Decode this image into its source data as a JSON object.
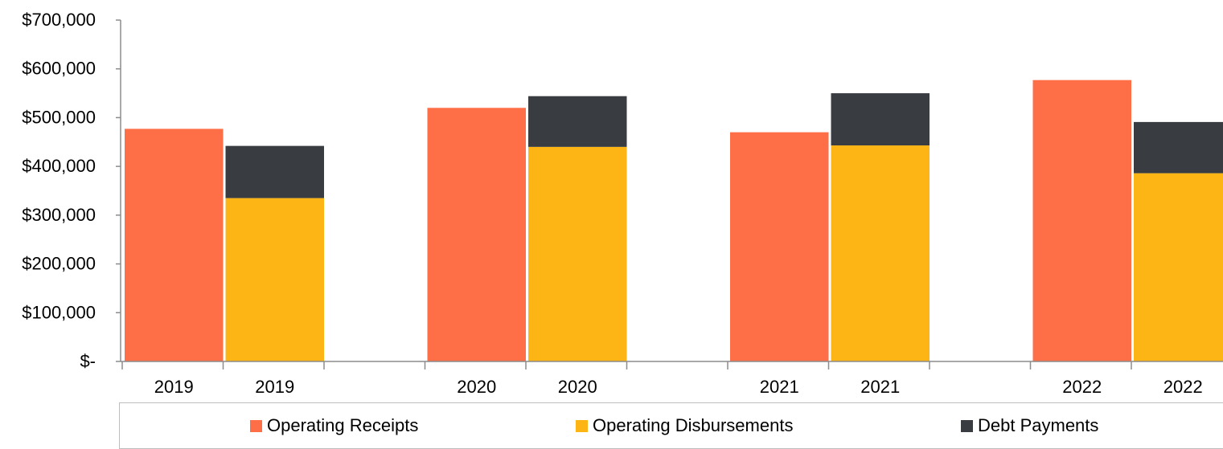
{
  "chart_data": {
    "type": "bar",
    "stacked_groups": true,
    "categories": [
      "2019",
      "2019",
      "2020",
      "2020",
      "2021",
      "2021",
      "2022",
      "2022"
    ],
    "series": [
      {
        "name": "Operating Receipts",
        "color": "#FF6F47",
        "values": [
          477000,
          null,
          520000,
          null,
          470000,
          null,
          577000,
          null
        ]
      },
      {
        "name": "Operating Disbursements",
        "color": "#FDB515",
        "values": [
          null,
          335000,
          null,
          440000,
          null,
          443000,
          null,
          386000
        ]
      },
      {
        "name": "Debt Payments",
        "color": "#393C40",
        "values": [
          null,
          107000,
          null,
          104000,
          null,
          107000,
          null,
          105000
        ]
      }
    ],
    "y_ticks": [
      "$-",
      "$100,000",
      "$200,000",
      "$300,000",
      "$400,000",
      "$500,000",
      "$600,000",
      "$700,000"
    ],
    "ylim": [
      0,
      700000
    ],
    "grid": false,
    "legend_position": "bottom"
  }
}
